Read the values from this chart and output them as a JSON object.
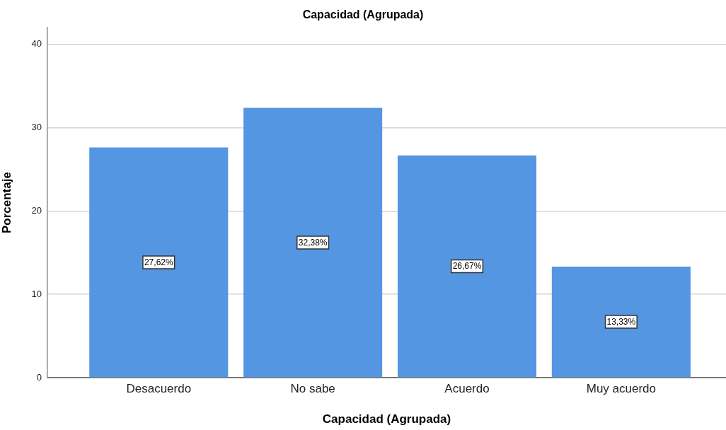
{
  "chart_data": {
    "type": "bar",
    "title": "Capacidad (Agrupada)",
    "xlabel": "Capacidad (Agrupada)",
    "ylabel": "Porcentaje",
    "categories": [
      "Desacuerdo",
      "No sabe",
      "Acuerdo",
      "Muy acuerdo"
    ],
    "values": [
      27.62,
      32.38,
      26.67,
      13.33
    ],
    "color": "#5596e3",
    "value_labels": [
      "27,62%",
      "32,38%",
      "26,67%",
      "13,33%"
    ],
    "ylim": [
      0,
      42
    ],
    "yticks": [
      0,
      10,
      20,
      30,
      40
    ],
    "grid": "y"
  }
}
